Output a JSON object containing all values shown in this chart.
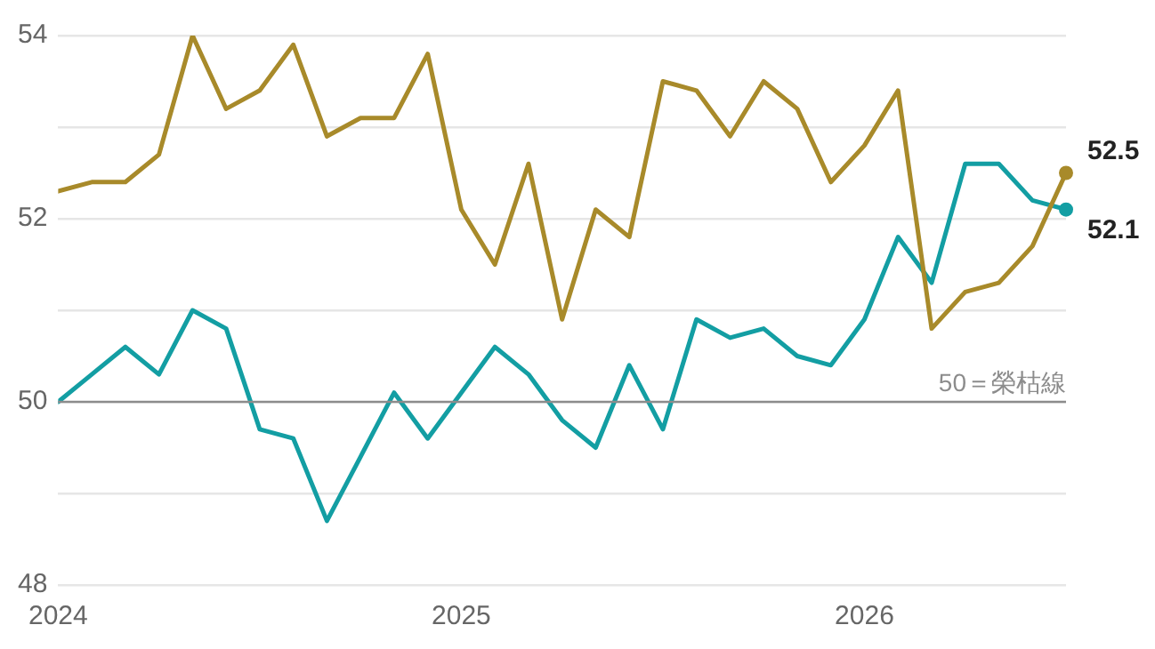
{
  "chart_data": {
    "type": "line",
    "x": [
      "2024-01",
      "2024-02",
      "2024-03",
      "2024-04",
      "2024-05",
      "2024-06",
      "2024-07",
      "2024-08",
      "2024-09",
      "2024-10",
      "2024-11",
      "2024-12",
      "2025-01",
      "2025-02",
      "2025-03",
      "2025-04",
      "2025-05",
      "2025-06",
      "2025-07",
      "2025-08",
      "2025-09",
      "2025-10",
      "2025-11",
      "2025-12",
      "2026-01",
      "2026-02",
      "2026-03",
      "2026-04",
      "2026-05",
      "2026-06",
      "2026-07"
    ],
    "series": [
      {
        "color": "#a88a2a",
        "values": [
          52.3,
          52.4,
          52.4,
          52.7,
          54.0,
          53.2,
          53.4,
          53.9,
          52.9,
          53.1,
          53.1,
          53.8,
          52.1,
          51.5,
          52.6,
          50.9,
          52.1,
          51.8,
          53.5,
          53.4,
          52.9,
          53.5,
          53.2,
          52.4,
          52.8,
          53.4,
          50.8,
          51.2,
          51.3,
          51.7,
          52.5
        ],
        "value_labels": [
          null,
          null,
          null,
          null,
          null,
          null,
          null,
          null,
          null,
          null,
          null,
          null,
          null,
          null,
          null,
          null,
          null,
          null,
          null,
          null,
          null,
          null,
          null,
          null,
          null,
          null,
          null,
          null,
          null,
          null,
          "52.5"
        ]
      },
      {
        "color": "#139ea3",
        "values": [
          50.0,
          50.3,
          50.6,
          50.3,
          51.0,
          50.8,
          49.7,
          49.6,
          48.7,
          49.4,
          50.1,
          49.6,
          50.1,
          50.6,
          50.3,
          49.8,
          49.5,
          50.4,
          49.7,
          50.9,
          50.7,
          50.8,
          50.5,
          50.4,
          50.9,
          51.8,
          51.3,
          52.6,
          52.6,
          52.2,
          52.1
        ],
        "value_labels": [
          null,
          null,
          null,
          null,
          null,
          null,
          null,
          null,
          null,
          null,
          null,
          null,
          null,
          null,
          null,
          null,
          null,
          null,
          null,
          null,
          null,
          null,
          null,
          null,
          null,
          null,
          null,
          null,
          null,
          null,
          "52.1"
        ]
      }
    ],
    "xlim": [
      "2024-01",
      "2026-07"
    ],
    "xticks": [
      {
        "value": "2024-01",
        "label": "2024"
      },
      {
        "value": "2025-01",
        "label": "2025"
      },
      {
        "value": "2026-01",
        "label": "2026"
      }
    ],
    "ylim": [
      48,
      54
    ],
    "yticks": [
      48,
      {
        "value": 49,
        "label": null
      },
      50,
      {
        "value": 51,
        "label": null
      },
      52,
      {
        "value": 53,
        "label": null
      },
      54
    ],
    "ref_lines": [
      {
        "axis": "y",
        "value": 50,
        "label": "50＝榮枯線",
        "color": "#8c8c8c"
      }
    ],
    "grid": "y",
    "legend": false,
    "marker": "none",
    "line_style": "solid"
  }
}
